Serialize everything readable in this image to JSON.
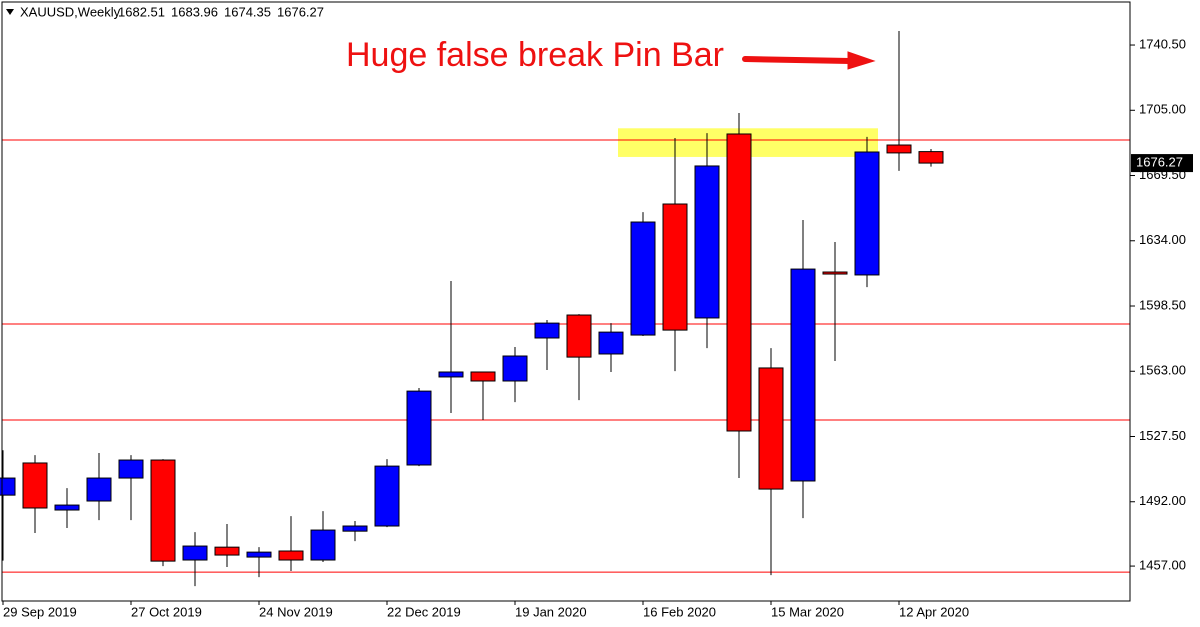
{
  "chart_data": {
    "type": "candlestick",
    "title": "XAUUSD,Weekly",
    "categories": [
      "29 Sep 2019",
      null,
      null,
      null,
      "27 Oct 2019",
      null,
      null,
      null,
      "24 Nov 2019",
      null,
      null,
      null,
      "22 Dec 2019",
      null,
      null,
      null,
      "19 Jan 2020",
      null,
      null,
      null,
      "16 Feb 2020",
      null,
      null,
      null,
      "15 Mar 2020",
      null,
      null,
      null,
      "12 Apr 2020",
      null
    ],
    "open": [
      1495.6,
      1513.1,
      1487.5,
      1492.4,
      1504.9,
      1514.7,
      1460.3,
      1467.3,
      1461.9,
      1465.2,
      1460.3,
      1476.0,
      1478.8,
      1512.0,
      1559.9,
      1562.6,
      1557.7,
      1581.1,
      1593.6,
      1572.4,
      1582.7,
      1654.0,
      1592.0,
      1692.1,
      1564.8,
      1503.3,
      1617.0,
      1615.4,
      1686.1,
      1682.51
    ],
    "high": [
      1520.0,
      1517.4,
      1499.4,
      1518.5,
      1517.4,
      1515.2,
      1475.5,
      1479.9,
      1467.3,
      1484.2,
      1486.9,
      1481.5,
      1515.2,
      1553.9,
      1612.1,
      1562.6,
      1576.2,
      1590.9,
      1594.1,
      1589.2,
      1649.6,
      1689.9,
      1692.6,
      1703.5,
      1575.6,
      1645.3,
      1633.3,
      1690.5,
      1748.1,
      1683.96
    ],
    "low": [
      1460.0,
      1475.0,
      1477.7,
      1482.0,
      1482.0,
      1457.0,
      1446.1,
      1456.5,
      1451.0,
      1454.3,
      1459.2,
      1470.6,
      1478.2,
      1511.4,
      1540.3,
      1536.5,
      1546.2,
      1563.7,
      1547.3,
      1562.6,
      1582.2,
      1563.1,
      1575.6,
      1504.9,
      1452.1,
      1483.1,
      1568.6,
      1608.8,
      1672.0,
      1674.35
    ],
    "close": [
      1504.9,
      1488.6,
      1490.2,
      1504.9,
      1514.7,
      1459.7,
      1467.9,
      1463.0,
      1464.6,
      1460.3,
      1476.6,
      1478.8,
      1511.4,
      1552.2,
      1562.6,
      1557.7,
      1571.3,
      1589.2,
      1570.7,
      1584.3,
      1644.2,
      1585.4,
      1674.7,
      1530.5,
      1498.9,
      1618.6,
      1615.9,
      1682.3,
      1681.8,
      1676.27
    ],
    "up_color": "#0000ff",
    "down_color": "#ff0000",
    "ylim": [
      1438,
      1765
    ],
    "yticks": [
      {
        "value": 1457,
        "label": "1457.00"
      },
      {
        "value": 1492,
        "label": "1492.00"
      },
      {
        "value": 1527.5,
        "label": "1527.50"
      },
      {
        "value": 1563,
        "label": "1563.00"
      },
      {
        "value": 1598.5,
        "label": "1598.50"
      },
      {
        "value": 1634,
        "label": "1634.00"
      },
      {
        "value": 1669.5,
        "label": "1669.50"
      },
      {
        "value": 1705,
        "label": "1705.00"
      },
      {
        "value": 1740.5,
        "label": "1740.50"
      }
    ],
    "levels": [
      1688.8,
      1588.7,
      1536.5,
      1453.7
    ],
    "level_color": "#ff0000",
    "highlight_range": [
      1679.6,
      1695.2
    ],
    "highlight_color": "#ffff66",
    "annotation": "Huge false break Pin Bar",
    "annotation_color": "#ee1111"
  }
}
